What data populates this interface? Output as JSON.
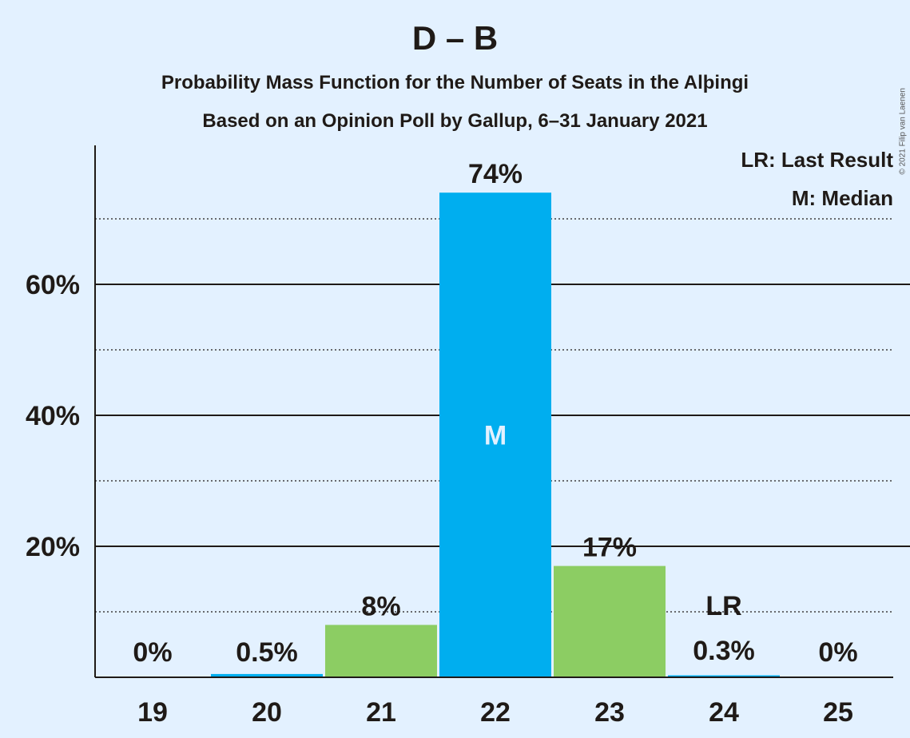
{
  "title": "D – B",
  "subtitle1": "Probability Mass Function for the Number of Seats in the Alþingi",
  "subtitle2": "Based on an Opinion Poll by Gallup, 6–31 January 2021",
  "copyright": "© 2021 Filip van Laenen",
  "legend": {
    "lr": "LR: Last Result",
    "m": "M: Median"
  },
  "colors": {
    "background": "#e3f1ff",
    "median_bar": "#00aeef",
    "bar": "#8ccd63",
    "text": "#1f1a17"
  },
  "chart_data": {
    "type": "bar",
    "categories": [
      "19",
      "20",
      "21",
      "22",
      "23",
      "24",
      "25"
    ],
    "values": [
      0,
      0.5,
      8,
      74,
      17,
      0.3,
      0
    ],
    "value_labels": [
      "0%",
      "0.5%",
      "8%",
      "74%",
      "17%",
      "0.3%",
      "0%"
    ],
    "median_category": "22",
    "median_marker": "M",
    "last_result_category": "24",
    "last_result_marker": "LR",
    "y_ticks": [
      {
        "value": 20,
        "label": "20%"
      },
      {
        "value": 40,
        "label": "40%"
      },
      {
        "value": 60,
        "label": "60%"
      }
    ],
    "y_minor_gridlines": [
      10,
      30,
      50,
      70
    ],
    "ylim": [
      0,
      81
    ],
    "grid": true,
    "legend_position": "top-right"
  }
}
